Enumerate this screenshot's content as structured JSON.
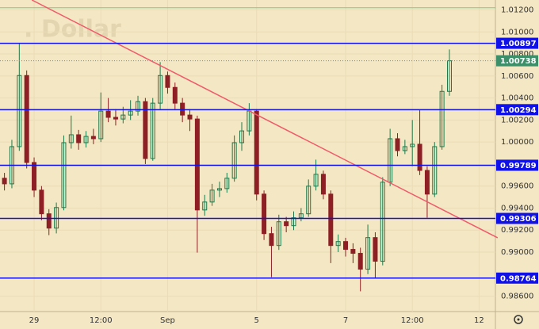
{
  "chart_data": {
    "type": "candlestick",
    "watermark": ". Dollar",
    "open": [
      0.99671,
      0.9962,
      0.99958,
      1.00604,
      0.99814,
      0.99563,
      0.99348,
      0.99218,
      0.99405,
      0.99994,
      1.00066,
      0.99994,
      1.00051,
      1.0003,
      1.00281,
      1.00224,
      1.00209,
      1.00245,
      1.00281,
      1.00367,
      0.9985,
      1.00353,
      1.00604,
      1.00496,
      1.00353,
      1.00245,
      1.00209,
      0.99383,
      0.99455,
      0.99563,
      0.99577,
      0.99671,
      0.99994,
      1.00101,
      1.00281,
      0.99527,
      0.99168,
      0.9906,
      0.99276,
      0.9924,
      0.99312,
      0.99348,
      0.99599,
      0.99707,
      0.99527,
      0.9906,
      0.99096,
      0.99025,
      0.98989,
      0.98845,
      0.99132,
      0.98917,
      0.99635,
      1.0003,
      0.99922,
      0.99958,
      0.9998,
      0.99742,
      0.99527,
      0.99958,
      1.0046
    ],
    "high": [
      0.9972,
      1.0002,
      1.009,
      1.0065,
      0.9986,
      0.996,
      0.9939,
      0.9945,
      1.0006,
      1.0024,
      1.0011,
      1.001,
      1.0012,
      1.0045,
      1.004,
      1.003,
      1.0032,
      1.0038,
      1.0042,
      1.004,
      1.004,
      1.00726,
      1.0064,
      1.0054,
      1.004,
      1.003,
      1.0024,
      0.9952,
      0.9962,
      0.9964,
      0.9972,
      1.0006,
      1.0018,
      1.00353,
      1.003,
      0.9956,
      0.9923,
      0.9934,
      0.9932,
      0.9937,
      0.994,
      0.9966,
      0.9984,
      0.9974,
      0.9956,
      0.9916,
      0.9913,
      0.9908,
      0.9904,
      0.9925,
      0.9918,
      0.9968,
      1.0012,
      1.0008,
      1.0002,
      1.002,
      1.00294,
      0.9978,
      1.0,
      1.0052,
      1.00841
    ],
    "low": [
      0.9956,
      0.9958,
      0.9992,
      0.9976,
      0.995,
      0.9929,
      0.99154,
      0.9917,
      0.9938,
      0.9994,
      0.9993,
      0.9995,
      0.9998,
      1.0,
      1.0018,
      1.0015,
      1.0017,
      1.002,
      1.0024,
      0.998,
      0.9983,
      1.003,
      1.0044,
      1.003,
      1.0018,
      1.001,
      0.98996,
      0.9933,
      0.9942,
      0.995,
      0.9954,
      0.9964,
      0.9992,
      1.0006,
      0.9947,
      0.9911,
      0.98773,
      0.9902,
      0.9918,
      0.992,
      0.9928,
      0.9932,
      0.9956,
      0.9948,
      0.989,
      0.99,
      0.9896,
      0.989,
      0.98644,
      0.988,
      0.98759,
      0.9888,
      0.996,
      0.9987,
      0.9989,
      0.9978,
      0.997,
      0.99312,
      0.995,
      0.9993,
      1.0042
    ],
    "close": [
      0.9962,
      0.99958,
      1.00604,
      0.99814,
      0.99563,
      0.99348,
      0.99218,
      0.99405,
      0.99994,
      1.00066,
      0.99994,
      1.00051,
      1.0003,
      1.00281,
      1.00224,
      1.00209,
      1.00245,
      1.00281,
      1.00367,
      0.9985,
      1.00353,
      1.00604,
      1.00496,
      1.00353,
      1.00245,
      1.00209,
      0.99383,
      0.99455,
      0.99563,
      0.99577,
      0.99671,
      0.99994,
      1.00101,
      1.00281,
      0.99527,
      0.99168,
      0.9906,
      0.99276,
      0.9924,
      0.99312,
      0.99348,
      0.99599,
      0.99707,
      0.99527,
      0.9906,
      0.99096,
      0.99025,
      0.98989,
      0.98845,
      0.99132,
      0.98917,
      0.99635,
      1.0003,
      0.99922,
      0.99958,
      0.9998,
      0.99742,
      0.99527,
      0.99958,
      1.0046,
      1.00738
    ],
    "up_color": "#1e7a4c",
    "down_color": "#8e1f24",
    "xlim": [
      -0.6,
      66.2
    ],
    "xticks": [
      {
        "value": 4,
        "label": "29"
      },
      {
        "value": 13,
        "label": "12:00"
      },
      {
        "value": 22,
        "label": "Sep"
      },
      {
        "value": 34,
        "label": "5"
      },
      {
        "value": 46,
        "label": "7"
      },
      {
        "value": 55,
        "label": "12:00"
      },
      {
        "value": 64,
        "label": "12"
      }
    ],
    "ylim": [
      0.9846,
      1.0129
    ],
    "yticks": [
      {
        "value": 1.012,
        "label": "1.01200"
      },
      {
        "value": 1.01,
        "label": "1.01000"
      },
      {
        "value": 1.008,
        "label": "1.00800"
      },
      {
        "value": 1.006,
        "label": "1.00600"
      },
      {
        "value": 1.004,
        "label": "1.00400"
      },
      {
        "value": 1.002,
        "label": "1.00200"
      },
      {
        "value": 1.0,
        "label": "1.00000"
      },
      {
        "value": 0.996,
        "label": "0.99600"
      },
      {
        "value": 0.994,
        "label": "0.99400"
      },
      {
        "value": 0.992,
        "label": "0.99200"
      },
      {
        "value": 0.99,
        "label": "0.99000"
      },
      {
        "value": 0.986,
        "label": "0.98600"
      }
    ],
    "grid": true,
    "levels": [
      1.00897,
      1.00294,
      0.99789,
      0.99306,
      0.98764
    ],
    "level_color": "#1010e8",
    "current_price": 1.00738,
    "current_color": "#3d8f6a",
    "top_line": 1.0122,
    "top_line_color": "#6fcf8f",
    "trend_line": {
      "x": [
        3.7,
        66.5
      ],
      "y": [
        1.0129,
        0.9913
      ],
      "color": "#f05a6a"
    }
  }
}
